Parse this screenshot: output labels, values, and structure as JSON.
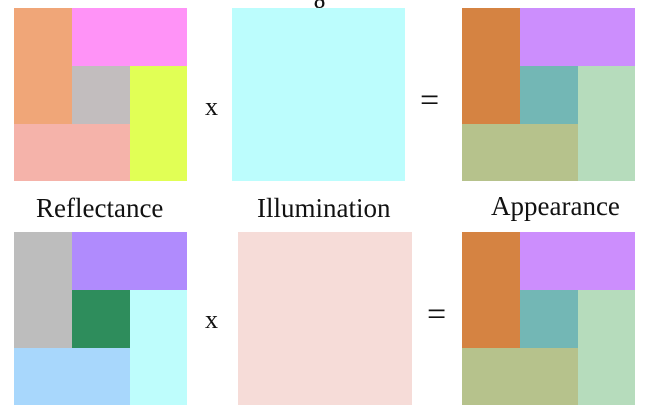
{
  "top_caption_fragment": "g",
  "row1": {
    "reflectance": {
      "colors": {
        "orange": "#f0a678",
        "magenta": "#ff93f7",
        "gray": "#c2bdbe",
        "yellow": "#e1ff55",
        "pink": "#f5b3aa"
      }
    },
    "operator_multiply": "x",
    "illumination": {
      "color": "#bcfdfd"
    },
    "operator_equals": "=",
    "appearance": {
      "colors": {
        "orange": "#d58342",
        "violet": "#cc8efd",
        "teal": "#73b7b5",
        "green": "#b6dcbc",
        "olive": "#b6c28c"
      }
    }
  },
  "labels": {
    "reflectance": "Reflectance",
    "illumination": "Illumination",
    "appearance": "Appearance"
  },
  "row2": {
    "reflectance": {
      "colors": {
        "gray": "#bdbdbd",
        "purple": "#b08bfd",
        "dark_green": "#2e8d5c",
        "cyan": "#befdfc",
        "light_blue": "#a8d7fc"
      }
    },
    "operator_multiply": "x",
    "illumination": {
      "color": "#f6dcd8"
    },
    "operator_equals": "=",
    "appearance": {
      "colors": {
        "orange": "#d58342",
        "violet": "#cc8efd",
        "teal": "#73b7b5",
        "green": "#b6dcbc",
        "olive": "#b6c28c"
      }
    }
  }
}
